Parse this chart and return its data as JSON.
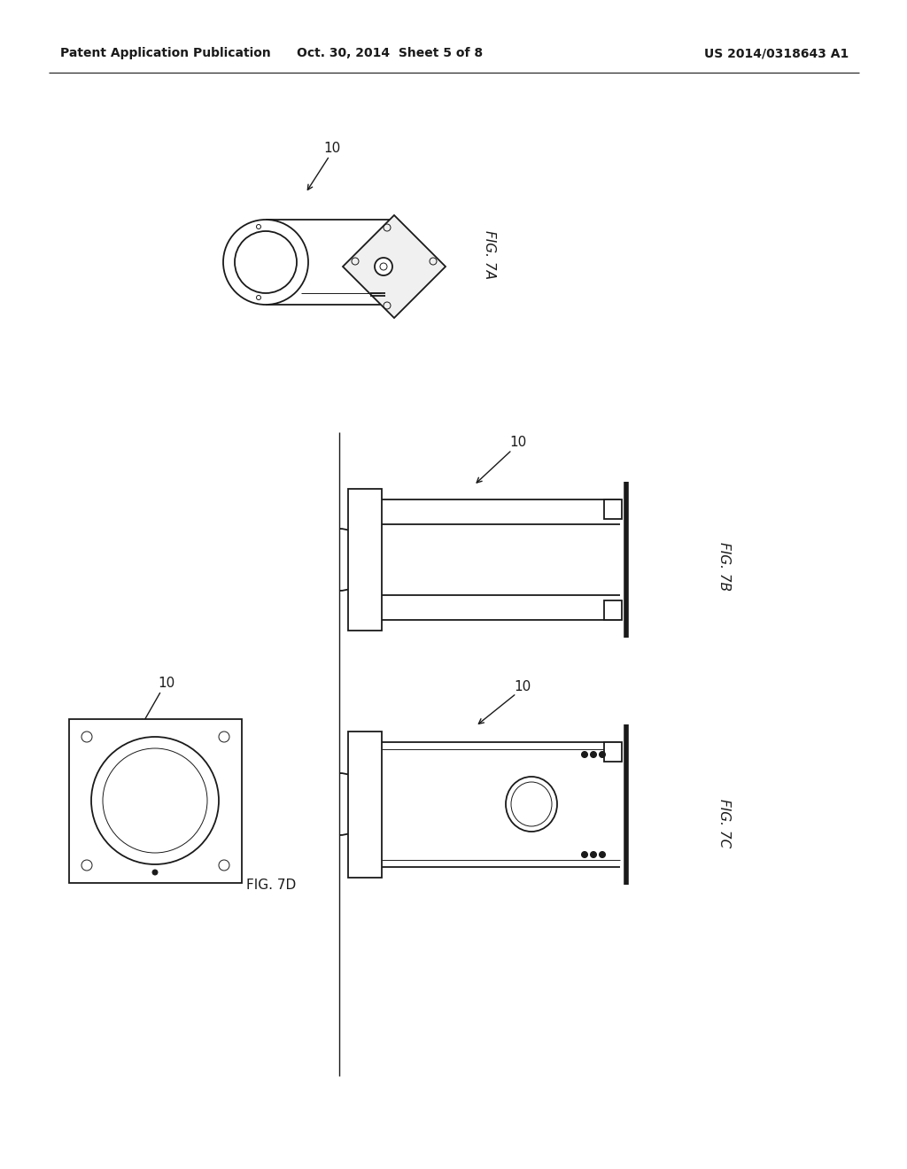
{
  "background_color": "#ffffff",
  "header_left": "Patent Application Publication",
  "header_center": "Oct. 30, 2014  Sheet 5 of 8",
  "header_right": "US 2014/0318643 A1",
  "line_color": "#1a1a1a",
  "fig7a_label": "FIG. 7A",
  "fig7b_label": "FIG. 7B",
  "fig7c_label": "FIG. 7C",
  "fig7d_label": "FIG. 7D",
  "lw": 1.3,
  "lw_thin": 0.7,
  "lw_thick": 2.5,
  "lw_vthick": 4.0
}
